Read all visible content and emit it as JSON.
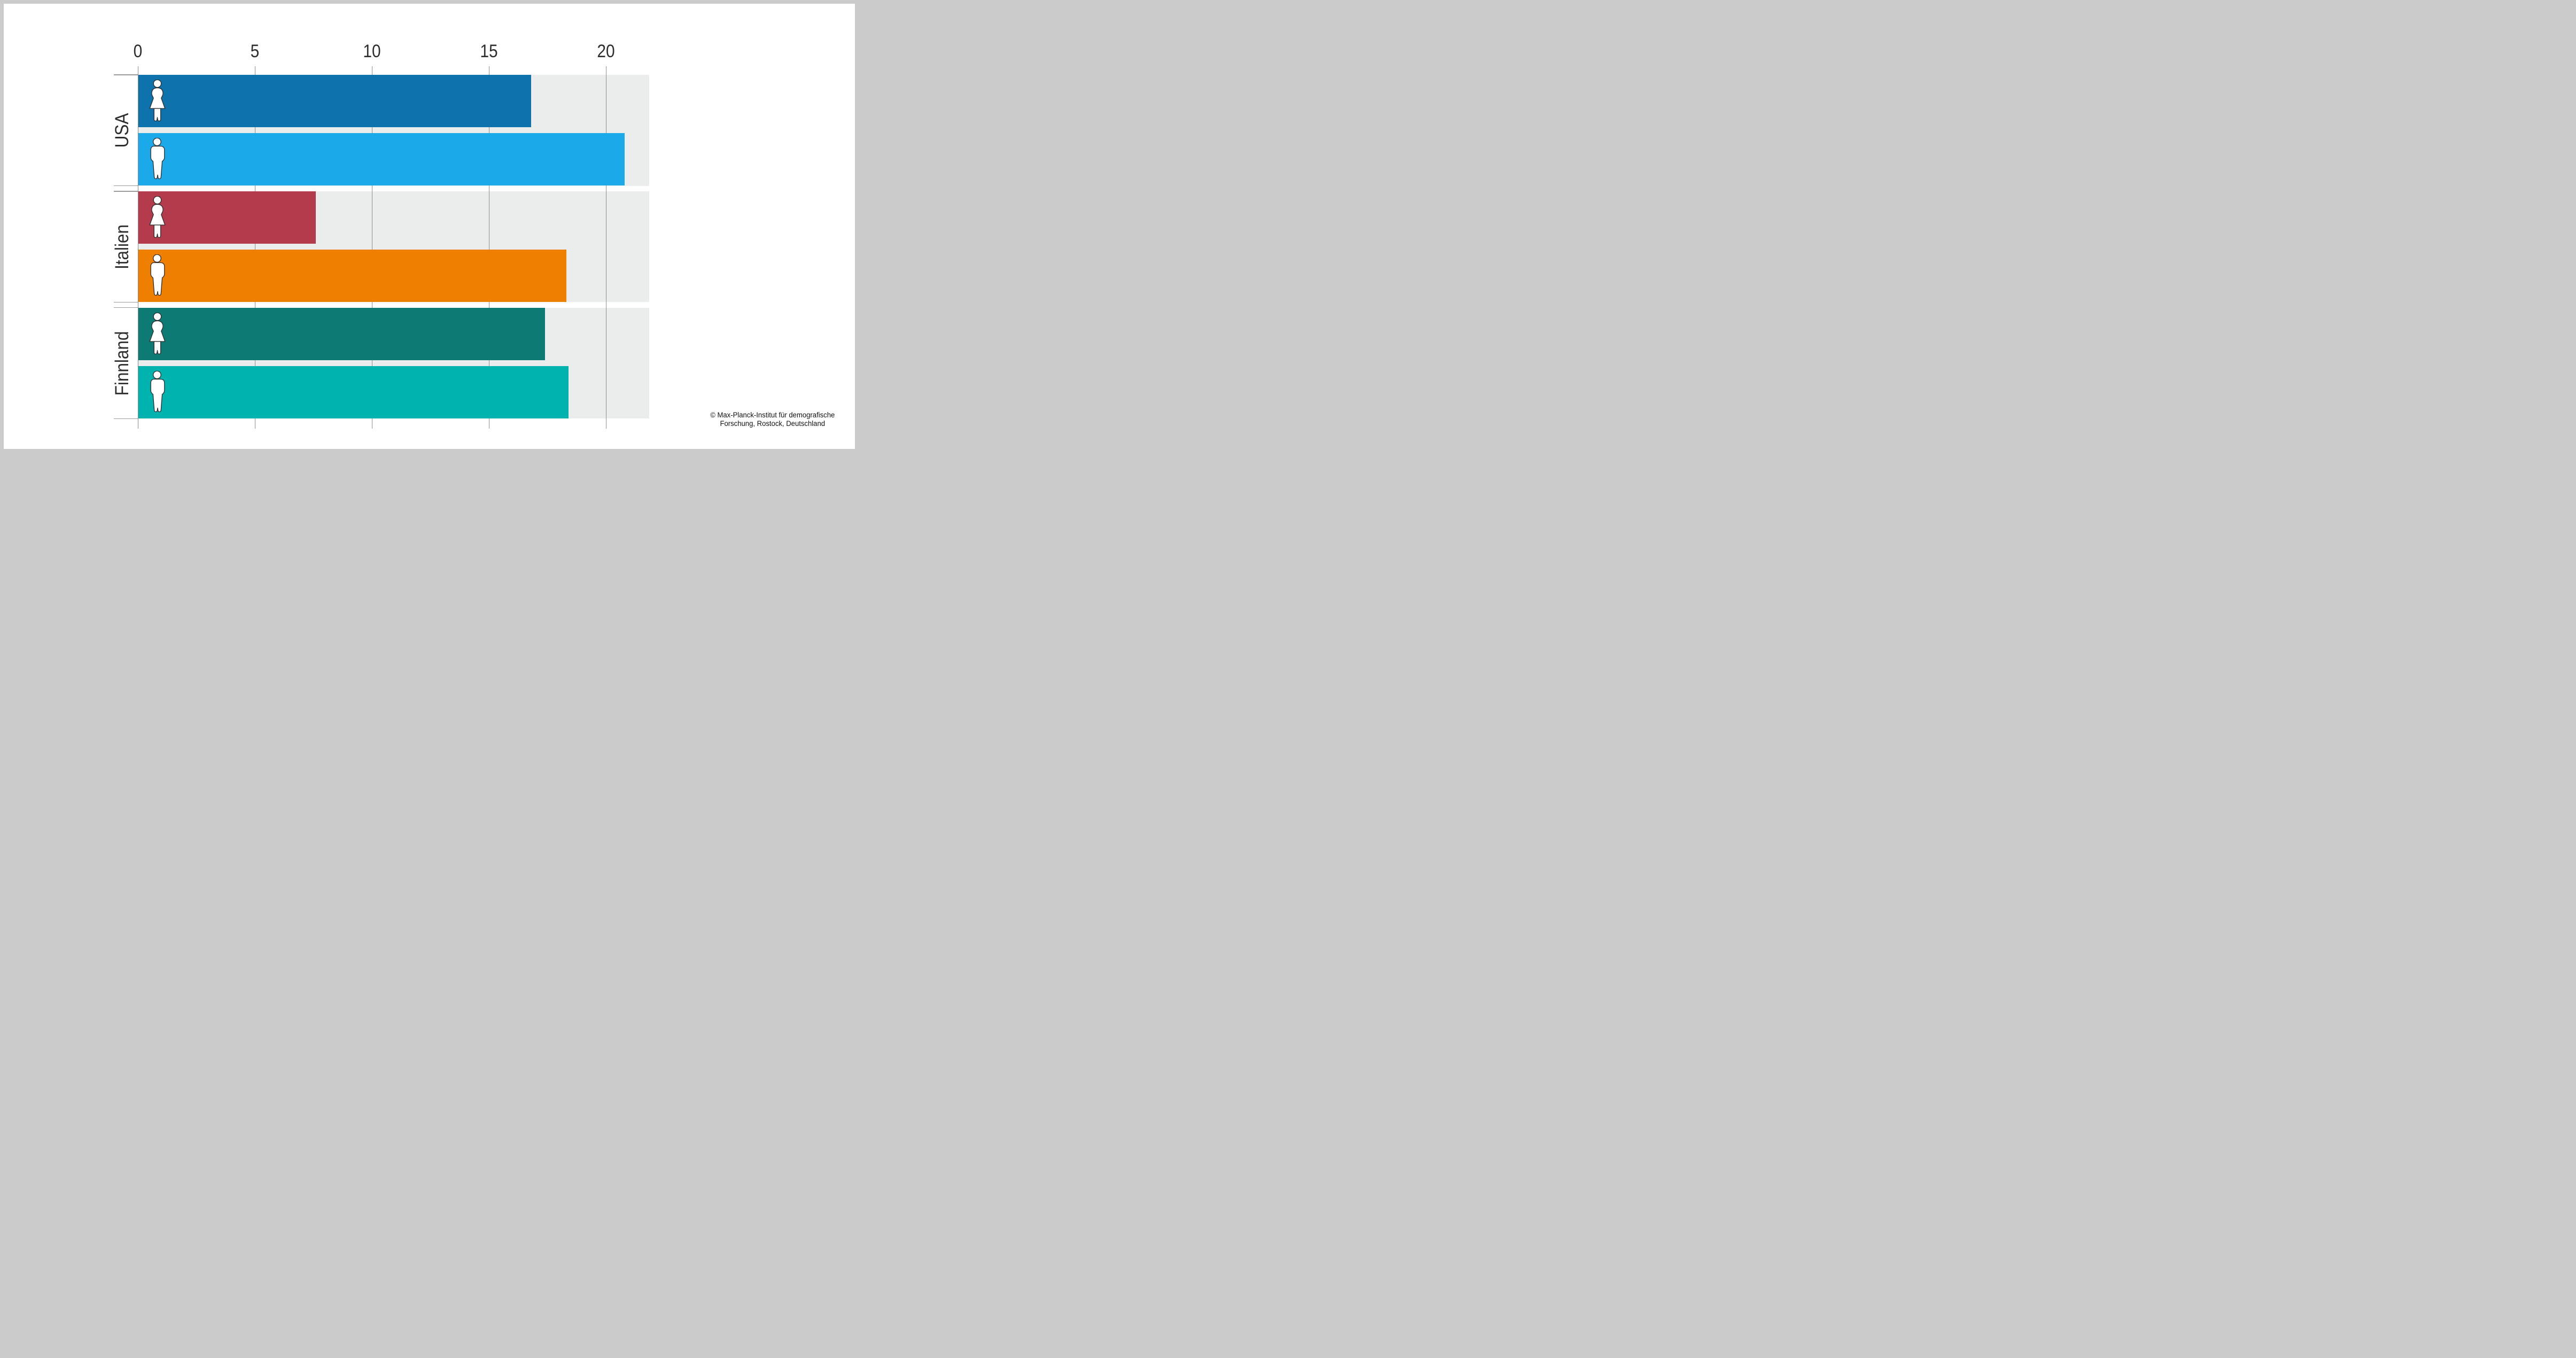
{
  "chart_data": {
    "type": "bar",
    "orientation": "horizontal",
    "title": "",
    "xlabel": "",
    "ylabel": "",
    "x_axis": {
      "position": "top",
      "ticks": [
        0,
        5,
        10,
        15,
        20
      ],
      "range": [
        0,
        21.85
      ],
      "gridlines": true
    },
    "categories": [
      "USA",
      "Italien",
      "Finnland"
    ],
    "series": [
      {
        "name": "women",
        "icon": "woman-icon",
        "values": [
          16.8,
          7.6,
          17.4
        ],
        "colors": [
          "#0e73ac",
          "#b43b4b",
          "#0d7a74"
        ]
      },
      {
        "name": "men",
        "icon": "man-icon",
        "values": [
          20.8,
          18.3,
          18.4
        ],
        "colors": [
          "#1ca9e9",
          "#ee7f00",
          "#00b3ae"
        ]
      }
    ],
    "legend_position": "none",
    "plot_background": "#ebecec",
    "grid_color": "#8f8f8f",
    "tick_color": "#9a9a9a",
    "axis_text_color": "#2d2d2d",
    "icon_fill": "#ffffff",
    "icon_outline": "#2b2b2b",
    "frame_color": "#cbcbcb",
    "card_color": "#ffffff"
  },
  "credit": {
    "line1": "© Max-Planck-Institut für demografische",
    "line2": "Forschung, Rostock, Deutschland"
  }
}
